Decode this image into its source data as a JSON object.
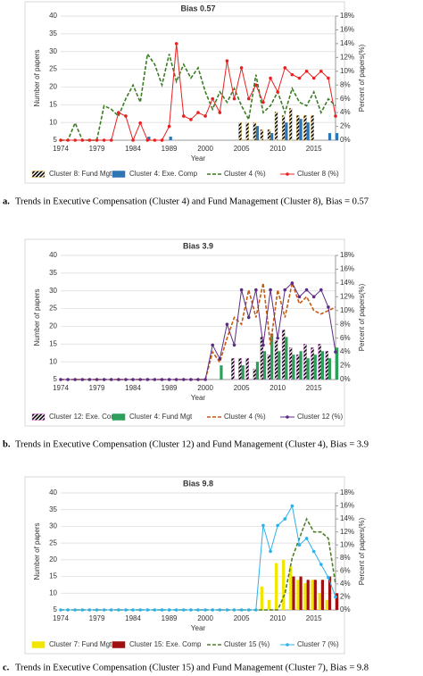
{
  "chart_data": [
    {
      "type": "bar",
      "title": "Bias 0.57",
      "x_label": "Year",
      "y_label": "Number of papers",
      "y2_label": "Percent of papers(%)",
      "caption_label": "a.",
      "caption": "Trends in Executive Compensation (Cluster 4) and Fund Management (Cluster 8), Bias = 0.57",
      "categories": [
        "1974",
        null,
        null,
        null,
        null,
        "1979",
        null,
        null,
        null,
        null,
        "1984",
        null,
        null,
        null,
        null,
        "1989",
        null,
        null,
        null,
        null,
        "2000",
        null,
        null,
        null,
        null,
        "2005",
        null,
        null,
        null,
        null,
        "2010",
        null,
        null,
        null,
        null,
        "2015",
        null,
        null,
        null
      ],
      "ylim": [
        5,
        40
      ],
      "yticks": [
        5,
        10,
        15,
        20,
        25,
        30,
        35,
        40
      ],
      "y2lim": [
        0,
        18
      ],
      "y2ticks": [
        {
          "value": 0,
          "label": "0%"
        },
        {
          "value": 2,
          "label": "2%"
        },
        {
          "value": 4,
          "label": "4%"
        },
        {
          "value": 6,
          "label": "6%"
        },
        {
          "value": 8,
          "label": "8%"
        },
        {
          "value": 10,
          "label": "10%"
        },
        {
          "value": 12,
          "label": "12%"
        },
        {
          "value": 14,
          "label": "14%"
        },
        {
          "value": 16,
          "label": "16%"
        },
        {
          "value": 18,
          "label": "18%"
        }
      ],
      "grid": true,
      "series": [
        {
          "name": "Cluster 8: Fund Mgt",
          "kind": "bar",
          "color": "#f2bd3a",
          "hatch": true,
          "values": [
            null,
            null,
            null,
            null,
            null,
            null,
            null,
            null,
            null,
            null,
            null,
            null,
            null,
            null,
            null,
            null,
            null,
            null,
            null,
            null,
            null,
            null,
            null,
            null,
            null,
            10,
            10,
            10,
            8,
            8,
            13,
            12,
            14,
            12,
            12,
            12,
            null,
            null,
            null
          ]
        },
        {
          "name": "Cluster 4: Exe. Comp",
          "kind": "bar",
          "color": "#2e75b6",
          "values": [
            null,
            null,
            null,
            null,
            null,
            null,
            null,
            null,
            null,
            null,
            null,
            null,
            6,
            null,
            null,
            6,
            null,
            null,
            null,
            null,
            null,
            null,
            null,
            null,
            null,
            null,
            null,
            9,
            null,
            7,
            null,
            10,
            null,
            11,
            10,
            null,
            null,
            7,
            7
          ]
        },
        {
          "name": "Cluster 4 (%)",
          "kind": "line",
          "axis": "y2",
          "color": "#3a7d22",
          "dashed": true,
          "values": [
            0,
            0,
            2.5,
            0,
            0,
            0,
            5,
            4.5,
            3.5,
            6,
            8,
            5.5,
            12.5,
            11,
            8,
            12.5,
            8.5,
            11,
            9,
            10.5,
            7,
            4.5,
            7,
            5.5,
            7.5,
            5,
            3,
            9.5,
            4,
            5,
            7,
            4,
            7.5,
            5.5,
            5,
            7,
            4,
            6,
            5
          ]
        },
        {
          "name": "Cluster 8 (%)",
          "kind": "line",
          "axis": "y2",
          "color": "#e82020",
          "marker": true,
          "values": [
            0,
            0,
            0,
            0,
            0,
            0,
            0,
            0,
            4,
            3.5,
            0,
            2.5,
            0,
            0,
            0,
            2,
            14,
            3.5,
            3,
            4,
            3.5,
            6,
            4,
            11.5,
            6,
            10.5,
            6,
            8,
            5.5,
            9,
            7,
            10.5,
            9.5,
            9,
            10,
            9,
            10,
            9,
            3.5
          ]
        }
      ]
    },
    {
      "type": "bar",
      "title": "Bias 3.9",
      "x_label": "Year",
      "y_label": "Number of papers",
      "y2_label": "Percent of papers(%)",
      "caption_label": "b.",
      "caption": "Trends in Executive Compensation (Cluster 12) and Fund Management (Cluster 4), Bias = 3.9",
      "categories": [
        "1974",
        null,
        null,
        null,
        null,
        "1979",
        null,
        null,
        null,
        null,
        "1984",
        null,
        null,
        null,
        null,
        "1989",
        null,
        null,
        null,
        null,
        "2000",
        null,
        null,
        null,
        null,
        "2005",
        null,
        null,
        null,
        null,
        "2010",
        null,
        null,
        null,
        null,
        "2015",
        null,
        null,
        null
      ],
      "ylim": [
        5,
        40
      ],
      "yticks": [
        5,
        10,
        15,
        20,
        25,
        30,
        35,
        40
      ],
      "y2lim": [
        0,
        18
      ],
      "y2ticks": [
        {
          "value": 0,
          "label": "0%"
        },
        {
          "value": 2,
          "label": "2%"
        },
        {
          "value": 4,
          "label": "4%"
        },
        {
          "value": 6,
          "label": "6%"
        },
        {
          "value": 8,
          "label": "8%"
        },
        {
          "value": 10,
          "label": "10%"
        },
        {
          "value": 12,
          "label": "12%"
        },
        {
          "value": 14,
          "label": "14%"
        },
        {
          "value": 16,
          "label": "16%"
        },
        {
          "value": 18,
          "label": "18%"
        }
      ],
      "grid": true,
      "series": [
        {
          "name": "Cluster 12: Exe. Comp",
          "kind": "bar",
          "color": "#e066e0",
          "hatch": true,
          "values": [
            null,
            null,
            null,
            null,
            null,
            null,
            null,
            null,
            null,
            null,
            null,
            null,
            null,
            null,
            null,
            null,
            null,
            null,
            null,
            null,
            null,
            null,
            null,
            null,
            11,
            11,
            11,
            8,
            17,
            12,
            16,
            19,
            14,
            12,
            15,
            14,
            15,
            13,
            null
          ]
        },
        {
          "name": "Cluster 4: Fund Mgt",
          "kind": "bar",
          "color": "#2ca05a",
          "values": [
            null,
            null,
            null,
            null,
            null,
            null,
            null,
            null,
            null,
            null,
            null,
            null,
            null,
            null,
            null,
            null,
            null,
            null,
            null,
            null,
            null,
            null,
            9,
            null,
            5,
            9,
            null,
            10,
            13,
            18,
            13,
            17,
            12,
            13,
            11,
            12,
            13,
            11,
            14
          ]
        },
        {
          "name": "Cluster 4 (%)",
          "kind": "line",
          "axis": "y2",
          "color": "#c55a11",
          "dashed": true,
          "values": [
            0,
            0,
            0,
            0,
            0,
            0,
            0,
            0,
            0,
            0,
            0,
            0,
            0,
            0,
            0,
            0,
            0,
            0,
            0,
            0,
            0,
            4,
            2.5,
            6,
            9,
            8,
            13,
            9,
            14,
            5,
            13,
            9,
            14,
            11,
            12,
            10,
            9.5,
            10,
            10.5
          ]
        },
        {
          "name": "Cluster 12 (%)",
          "kind": "line",
          "axis": "y2",
          "color": "#5b2c83",
          "marker": true,
          "values": [
            0,
            0,
            0,
            0,
            0,
            0,
            0,
            0,
            0,
            0,
            0,
            0,
            0,
            0,
            0,
            0,
            0,
            0,
            0,
            0,
            0,
            5,
            3,
            8,
            5,
            13,
            9,
            13,
            5,
            13,
            6,
            13,
            14,
            12,
            13,
            12,
            13,
            10.5,
            4
          ]
        }
      ]
    },
    {
      "type": "bar",
      "title": "Bias 9.8",
      "x_label": "Year",
      "y_label": "Number of papers",
      "y2_label": "Percent of papers(%)",
      "caption_label": "c.",
      "caption": "Trends in Executive Compensation (Cluster 15) and Fund Management (Cluster 7), Bias = 9.8",
      "categories": [
        "1974",
        null,
        null,
        null,
        null,
        "1979",
        null,
        null,
        null,
        null,
        "1984",
        null,
        null,
        null,
        null,
        "1989",
        null,
        null,
        null,
        null,
        "2000",
        null,
        null,
        null,
        null,
        "2005",
        null,
        null,
        null,
        null,
        "2010",
        null,
        null,
        null,
        null,
        "2015",
        null,
        null,
        null
      ],
      "ylim": [
        5,
        40
      ],
      "yticks": [
        5,
        10,
        15,
        20,
        25,
        30,
        35,
        40
      ],
      "y2lim": [
        0,
        18
      ],
      "y2ticks": [
        {
          "value": 0,
          "label": "0%"
        },
        {
          "value": 2,
          "label": "2%"
        },
        {
          "value": 4,
          "label": "4%"
        },
        {
          "value": 6,
          "label": "6%"
        },
        {
          "value": 8,
          "label": "8%"
        },
        {
          "value": 10,
          "label": "10%"
        },
        {
          "value": 12,
          "label": "12%"
        },
        {
          "value": 14,
          "label": "14%"
        },
        {
          "value": 16,
          "label": "16%"
        },
        {
          "value": 18,
          "label": "18%"
        }
      ],
      "grid": true,
      "series": [
        {
          "name": "Cluster 7: Fund Mgt",
          "kind": "bar",
          "color": "#f2e600",
          "values": [
            null,
            null,
            null,
            null,
            null,
            null,
            null,
            null,
            null,
            null,
            null,
            null,
            null,
            null,
            null,
            null,
            null,
            null,
            null,
            null,
            null,
            null,
            null,
            null,
            null,
            null,
            null,
            null,
            12,
            8,
            19,
            20,
            18,
            14,
            13,
            14,
            10,
            8,
            null
          ]
        },
        {
          "name": "Cluster 15: Exe. Comp",
          "kind": "bar",
          "color": "#a01010",
          "values": [
            null,
            null,
            null,
            null,
            null,
            null,
            null,
            null,
            null,
            null,
            null,
            null,
            null,
            null,
            null,
            null,
            null,
            null,
            null,
            null,
            null,
            null,
            null,
            null,
            null,
            null,
            null,
            null,
            null,
            null,
            null,
            null,
            15,
            15,
            14,
            14,
            14,
            15,
            10
          ]
        },
        {
          "name": "Cluster 15 (%)",
          "kind": "line",
          "axis": "y2",
          "color": "#4f7f2a",
          "dashed": true,
          "values": [
            0,
            0,
            0,
            0,
            0,
            0,
            0,
            0,
            0,
            0,
            0,
            0,
            0,
            0,
            0,
            0,
            0,
            0,
            0,
            0,
            0,
            0,
            0,
            0,
            0,
            0,
            0,
            0,
            0,
            0,
            0,
            2.5,
            8,
            11,
            14,
            12,
            12,
            11,
            4
          ]
        },
        {
          "name": "Cluster 7 (%)",
          "kind": "line",
          "axis": "y2",
          "color": "#2eb0e8",
          "marker": true,
          "values": [
            0,
            0,
            0,
            0,
            0,
            0,
            0,
            0,
            0,
            0,
            0,
            0,
            0,
            0,
            0,
            0,
            0,
            0,
            0,
            0,
            0,
            0,
            0,
            0,
            0,
            0,
            0,
            0,
            13,
            9,
            13,
            14,
            16,
            10,
            11,
            9,
            7,
            5,
            2
          ]
        }
      ]
    }
  ]
}
